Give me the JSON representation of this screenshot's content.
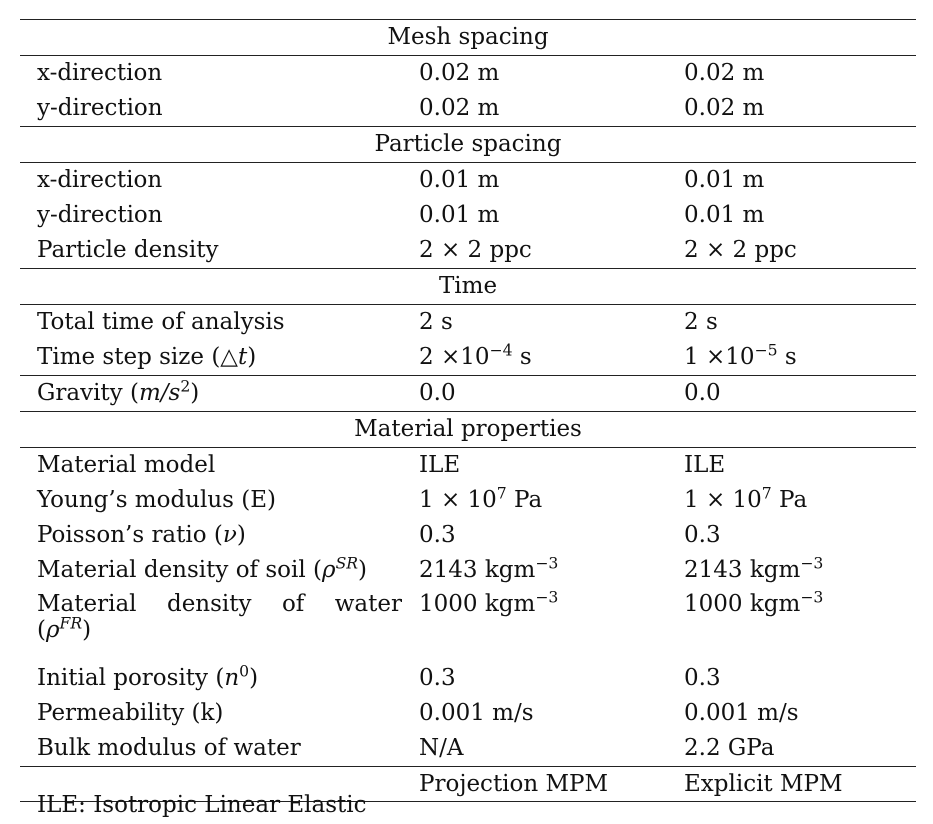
{
  "sections": {
    "mesh": "Mesh spacing",
    "particle": "Particle spacing",
    "time": "Time",
    "material": "Material properties"
  },
  "mesh": {
    "x_label": "x-direction",
    "x_proj": "0.02 m",
    "x_expl": "0.02 m",
    "y_label": "y-direction",
    "y_proj": "0.02 m",
    "y_expl": "0.02 m"
  },
  "particle": {
    "x_label": "x-direction",
    "x_proj": "0.01 m",
    "x_expl": "0.01 m",
    "y_label": "y-direction",
    "y_proj": "0.01 m",
    "y_expl": "0.01 m",
    "density_label": "Particle density",
    "density_proj": "2 × 2 ppc",
    "density_expl": "2 × 2 ppc"
  },
  "time": {
    "total_label": "Total time of analysis",
    "total_proj": "2 s",
    "total_expl": "2 s",
    "step_label_a": "Time step size (",
    "step_label_sym": "△",
    "step_label_var": "t",
    "step_label_b": ")",
    "step_proj_base": "2 ×10",
    "step_proj_exp": "−4",
    "step_proj_unit": " s",
    "step_expl_base": "1 ×10",
    "step_expl_exp": "−5",
    "step_expl_unit": " s",
    "gravity_label_a": "Gravity (",
    "gravity_label_math": "m/s",
    "gravity_label_exp": "2",
    "gravity_label_b": ")",
    "gravity_proj": "0.0",
    "gravity_expl": "0.0"
  },
  "material": {
    "model_label": "Material model",
    "model_proj": "ILE",
    "model_expl": "ILE",
    "young_label": "Young’s modulus (E)",
    "young_proj_base": "1 × 10",
    "young_proj_exp": "7",
    "young_proj_unit": " Pa",
    "young_expl_base": "1 × 10",
    "young_expl_exp": "7",
    "young_expl_unit": " Pa",
    "poisson_label_a": "Poisson’s ratio (",
    "poisson_label_sym": "ν",
    "poisson_label_b": ")",
    "poisson_proj": "0.3",
    "poisson_expl": "0.3",
    "soil_label_a": "Material density of soil (",
    "soil_label_sym": "ρ",
    "soil_label_exp": "SR",
    "soil_label_b": ")",
    "soil_proj_base": "2143 kgm",
    "soil_proj_exp": "−3",
    "soil_expl_base": "2143 kgm",
    "soil_expl_exp": "−3",
    "water_label_line1": "Material density of water",
    "water_label_a": "(",
    "water_label_sym": "ρ",
    "water_label_exp": "FR",
    "water_label_b": ")",
    "water_proj_base": "1000 kgm",
    "water_proj_exp": "−3",
    "water_expl_base": "1000 kgm",
    "water_expl_exp": "−3",
    "porosity_label_a": "Initial porosity (",
    "porosity_label_var": "n",
    "porosity_label_exp": "0",
    "porosity_label_b": ")",
    "porosity_proj": "0.3",
    "porosity_expl": "0.3",
    "perm_label": "Permeability (k)",
    "perm_proj": "0.001 m/s",
    "perm_expl": "0.001 m/s",
    "bulk_label": "Bulk modulus of water",
    "bulk_proj": "N/A",
    "bulk_expl": "2.2 GPa"
  },
  "methods": {
    "projection": "Projection MPM",
    "explicit": "Explicit MPM"
  },
  "footnote": "ILE: Isotropic Linear Elastic"
}
